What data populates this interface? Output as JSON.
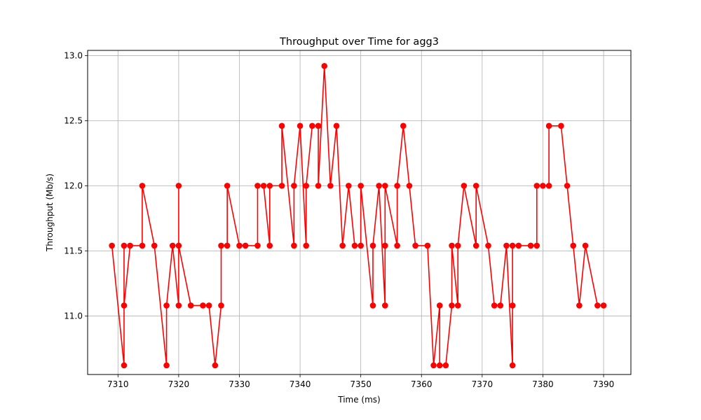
{
  "chart_data": {
    "type": "line",
    "title": "Throughput over Time for agg3",
    "xlabel": "Time (ms)",
    "ylabel": "Throughput (Mb/s)",
    "xlim": [
      7305,
      7394.5
    ],
    "ylim": [
      10.55,
      13.04
    ],
    "xticks": [
      7310,
      7320,
      7330,
      7340,
      7350,
      7360,
      7370,
      7380,
      7390
    ],
    "yticks": [
      11.0,
      11.5,
      12.0,
      12.5,
      13.0
    ],
    "xtick_labels": [
      "7310",
      "7320",
      "7330",
      "7340",
      "7350",
      "7360",
      "7370",
      "7380",
      "7390"
    ],
    "ytick_labels": [
      "11.0",
      "11.5",
      "12.0",
      "12.5",
      "13.0"
    ],
    "grid": true,
    "series": [
      {
        "color": "#ff0000",
        "marker": "circle",
        "x": [
          7309,
          7311,
          7311,
          7311,
          7312,
          7314,
          7314,
          7316,
          7318,
          7318,
          7319,
          7320,
          7320,
          7320,
          7322,
          7324,
          7325,
          7326,
          7327,
          7327,
          7328,
          7328,
          7330,
          7331,
          7333,
          7333,
          7334,
          7335,
          7335,
          7337,
          7337,
          7339,
          7339,
          7340,
          7341,
          7341,
          7342,
          7343,
          7343,
          7344,
          7345,
          7346,
          7347,
          7348,
          7349,
          7350,
          7350,
          7352,
          7352,
          7353,
          7354,
          7354,
          7354,
          7356,
          7356,
          7357,
          7358,
          7359,
          7361,
          7362,
          7363,
          7363,
          7364,
          7365,
          7365,
          7366,
          7366,
          7367,
          7369,
          7369,
          7371,
          7372,
          7373,
          7374,
          7375,
          7375,
          7375,
          7376,
          7378,
          7379,
          7379,
          7380,
          7381,
          7381,
          7383,
          7384,
          7385,
          7386,
          7387,
          7389,
          7390
        ],
        "y": [
          11.54,
          10.62,
          11.54,
          11.08,
          11.54,
          11.54,
          12.0,
          11.54,
          10.62,
          11.08,
          11.54,
          11.08,
          12.0,
          11.54,
          11.08,
          11.08,
          11.08,
          10.62,
          11.08,
          11.54,
          11.54,
          12.0,
          11.54,
          11.54,
          11.54,
          12.0,
          12.0,
          11.54,
          12.0,
          12.0,
          12.46,
          11.54,
          12.0,
          12.46,
          11.54,
          12.0,
          12.46,
          12.46,
          12.0,
          12.92,
          12.0,
          12.46,
          11.54,
          12.0,
          11.54,
          11.54,
          12.0,
          11.08,
          11.54,
          12.0,
          11.08,
          11.54,
          12.0,
          11.54,
          12.0,
          12.46,
          12.0,
          11.54,
          11.54,
          10.62,
          11.08,
          10.62,
          10.62,
          11.08,
          11.54,
          11.08,
          11.54,
          12.0,
          11.54,
          12.0,
          11.54,
          11.08,
          11.08,
          11.54,
          10.62,
          11.08,
          11.54,
          11.54,
          11.54,
          11.54,
          12.0,
          12.0,
          12.0,
          12.46,
          12.46,
          12.0,
          11.54,
          11.08,
          11.54,
          11.08,
          11.08
        ]
      }
    ]
  }
}
